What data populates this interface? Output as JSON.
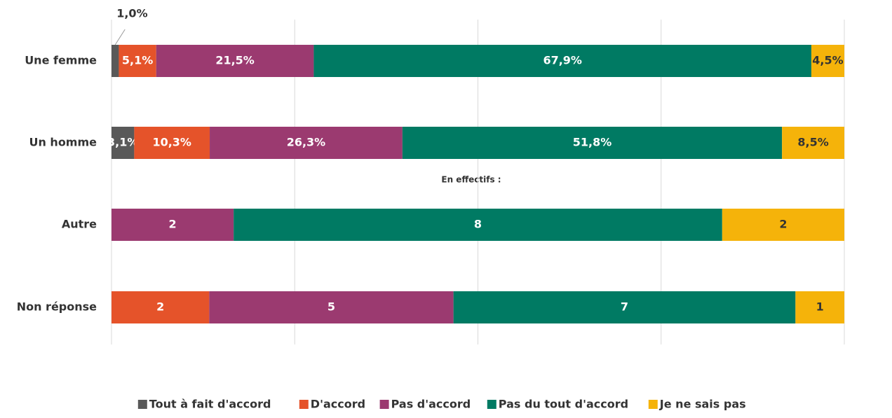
{
  "chart_data": {
    "type": "stacked-bar-horizontal",
    "annotation": "En effectifs :",
    "categories": [
      "Une femme",
      "Un homme",
      "Autre",
      "Non réponse"
    ],
    "xlim": [
      0,
      100
    ],
    "xticks": [
      0,
      25,
      50,
      75,
      100
    ],
    "grid": true,
    "legend": "bottom",
    "series": [
      {
        "name": "Tout à fait d'accord",
        "color": "#595959",
        "values": [
          1.0,
          3.1,
          null,
          null
        ],
        "value_labels": [
          "1,0%",
          "3,1%",
          null,
          null
        ]
      },
      {
        "name": "D'accord",
        "color": "#e5532a",
        "values": [
          5.1,
          10.3,
          null,
          2
        ],
        "value_labels": [
          "5,1%",
          "10,3%",
          null,
          null
        ]
      },
      {
        "name": "Pas d'accord",
        "color": "#9b3a70",
        "values": [
          21.5,
          26.3,
          2,
          5
        ],
        "value_labels": [
          "21,5%",
          "26,3%",
          null,
          null
        ]
      },
      {
        "name": "Pas du tout d'accord",
        "color": "#007a63",
        "values": [
          67.9,
          51.8,
          8,
          7
        ],
        "value_labels": [
          "67,9%",
          "51,8%",
          null,
          null
        ]
      },
      {
        "name": "Je ne sais pas",
        "color": "#f5b30a",
        "values": [
          4.5,
          8.5,
          2,
          1
        ],
        "value_labels": [
          "4,5%",
          "8,5%",
          null,
          null
        ]
      }
    ]
  }
}
